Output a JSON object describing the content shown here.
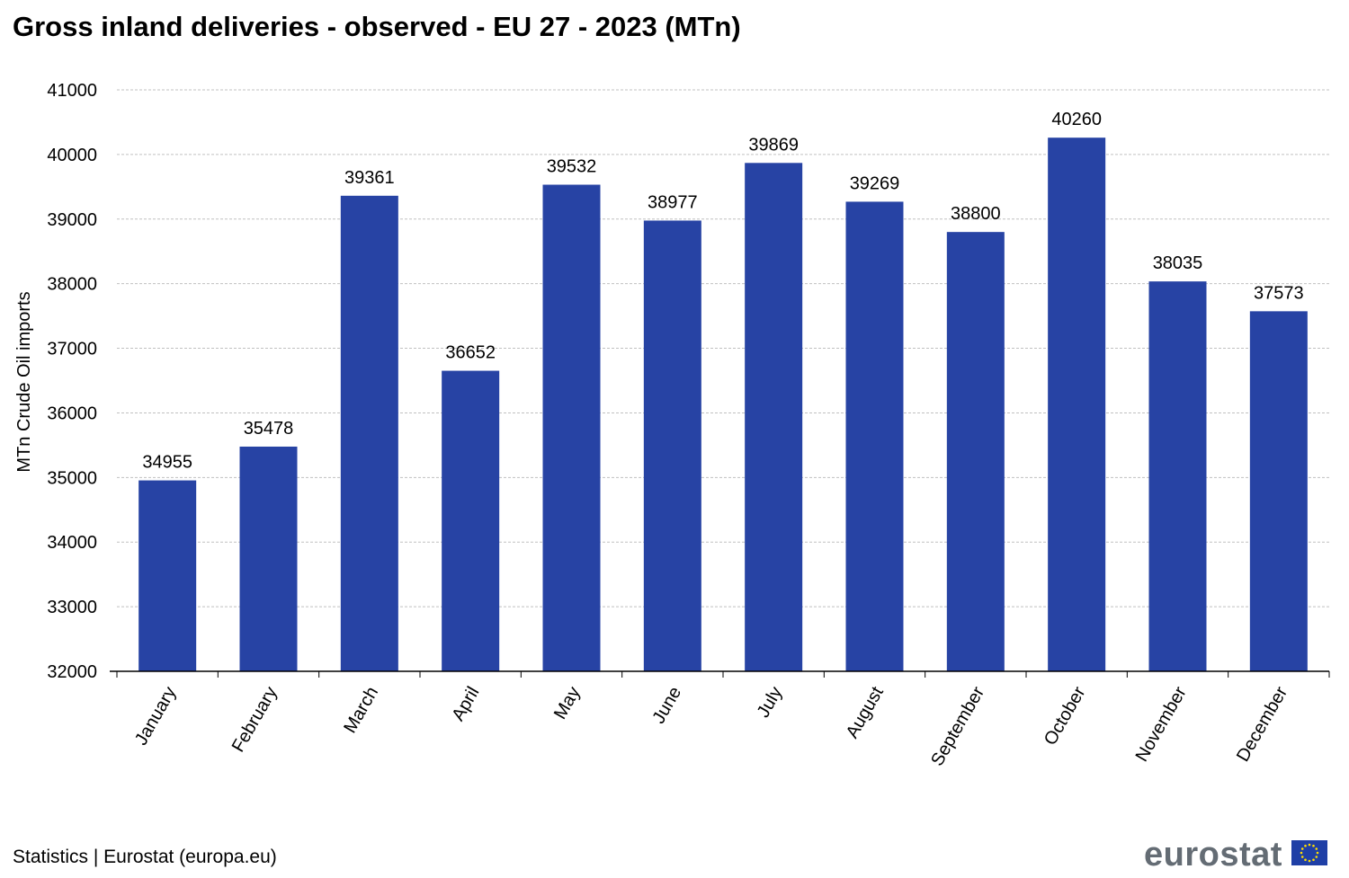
{
  "title": "Gross inland deliveries  - observed - EU 27 - 2023 (MTn)",
  "source": "Statistics | Eurostat (europa.eu)",
  "logo": {
    "text": "eurostat",
    "icon": "eu-flag-icon"
  },
  "colors": {
    "bar": "#2743a4",
    "grid": "#c0c0c0",
    "axis": "#000000",
    "flag_blue": "#1f3fa6",
    "flag_star": "#ffdd00",
    "logo_text": "#646c74"
  },
  "chart_data": {
    "type": "bar",
    "title": "Gross inland deliveries  - observed - EU 27 - 2023 (MTn)",
    "xlabel": "",
    "ylabel": "MTn Crude Oil imports",
    "ylim": [
      32000,
      41000
    ],
    "yticks": [
      32000,
      33000,
      34000,
      35000,
      36000,
      37000,
      38000,
      39000,
      40000,
      41000
    ],
    "grid": true,
    "categories": [
      "January",
      "February",
      "March",
      "April",
      "May",
      "June",
      "July",
      "August",
      "September",
      "October",
      "November",
      "December"
    ],
    "values": [
      34955,
      35478,
      39361,
      36652,
      39532,
      38977,
      39869,
      39269,
      38800,
      40260,
      38035,
      37573
    ],
    "data_labels": true
  }
}
